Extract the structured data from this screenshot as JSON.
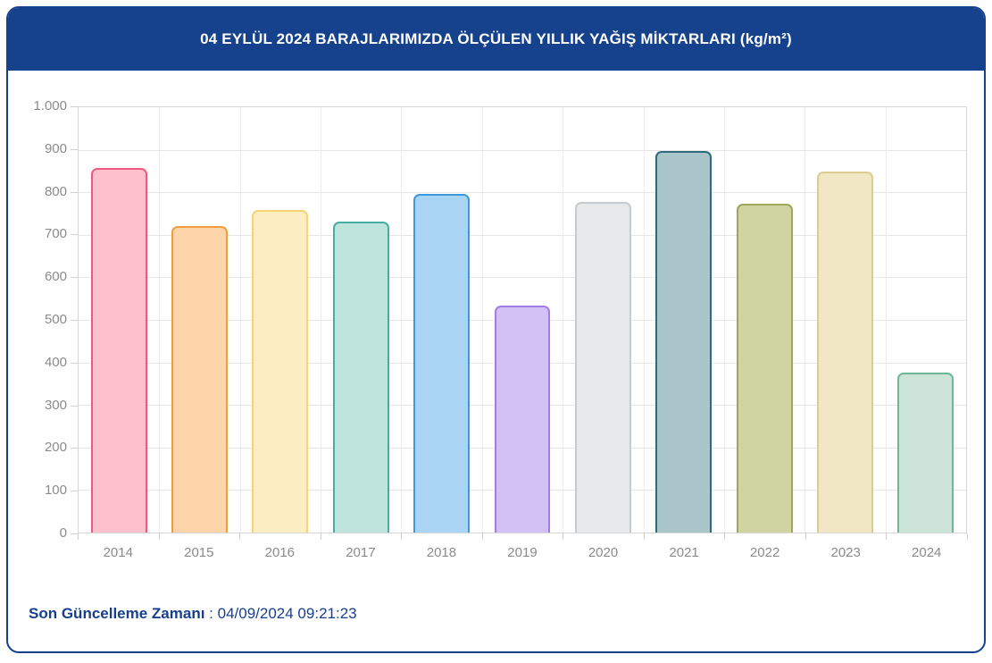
{
  "card": {
    "header": {
      "title": "04 EYLÜL 2024 BARAJLARIMIZDA ÖLÇÜLEN YILLIK YAĞIŞ MİKTARLARI (kg/m²)",
      "bg_color": "#16418C",
      "text_color": "#FFFFFF"
    },
    "footer": {
      "label": "Son Güncelleme Zamanı",
      "separator": " : ",
      "timestamp": "04/09/2024 09:21:23",
      "text_color": "#173F8F"
    }
  },
  "chart_data": {
    "type": "bar",
    "title": "04 EYLÜL 2024 BARAJLARIMIZDA ÖLÇÜLEN YILLIK YAĞIŞ MİKTARLARI (kg/m²)",
    "categories": [
      "2014",
      "2015",
      "2016",
      "2017",
      "2018",
      "2019",
      "2020",
      "2021",
      "2022",
      "2023",
      "2024"
    ],
    "values": [
      857,
      721,
      759,
      732,
      797,
      534,
      778,
      898,
      773,
      848,
      376
    ],
    "xlabel": "",
    "ylabel": "",
    "ylim": [
      0,
      1000
    ],
    "ytick_step": 100,
    "ytick_labels": [
      "1.000",
      "900",
      "800",
      "700",
      "600",
      "500",
      "400",
      "300",
      "200",
      "100",
      "0"
    ],
    "grid": true,
    "legend": "none",
    "axis_label_color": "#8B8B8B",
    "gridline_color": "#E7E7E7",
    "plot_border_color": "#D6D6D6",
    "bar_styles": [
      {
        "fill": "#FFC0CD",
        "border": "#EE5A7F"
      },
      {
        "fill": "#FDD5A9",
        "border": "#F09D3E"
      },
      {
        "fill": "#FCEDC2",
        "border": "#F7D372"
      },
      {
        "fill": "#BFE4DD",
        "border": "#43AFA5"
      },
      {
        "fill": "#A9D4F4",
        "border": "#3D98DC"
      },
      {
        "fill": "#D3C1F5",
        "border": "#A47CE6"
      },
      {
        "fill": "#E6E8EA",
        "border": "#C6CBCF"
      },
      {
        "fill": "#A9C5C9",
        "border": "#2E6C7C"
      },
      {
        "fill": "#CFD4A2",
        "border": "#9EA859"
      },
      {
        "fill": "#F2E7C4",
        "border": "#DECB90"
      },
      {
        "fill": "#CCE5D8",
        "border": "#70B795"
      }
    ]
  }
}
